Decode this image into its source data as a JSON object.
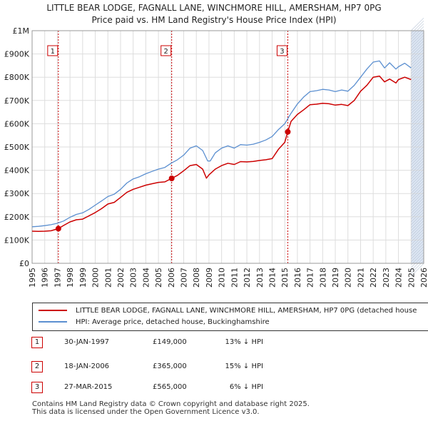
{
  "title_lines": [
    "LITTLE BEAR LODGE, FAGNALL LANE, WINCHMORE HILL, AMERSHAM, HP7 0PG",
    "Price paid vs. HM Land Registry's House Price Index (HPI)"
  ],
  "chart_data": {
    "type": "line",
    "x_range": [
      1995,
      2026
    ],
    "ylim": [
      0,
      1000000
    ],
    "y_ticks": [
      0,
      100000,
      200000,
      300000,
      400000,
      500000,
      600000,
      700000,
      800000,
      900000,
      1000000
    ],
    "y_tick_labels": [
      "£0",
      "£100K",
      "£200K",
      "£300K",
      "£400K",
      "£500K",
      "£600K",
      "£700K",
      "£800K",
      "£900K",
      "£1M"
    ],
    "x_ticks": [
      1995,
      1996,
      1997,
      1998,
      1999,
      2000,
      2001,
      2002,
      2003,
      2004,
      2005,
      2006,
      2007,
      2008,
      2009,
      2010,
      2011,
      2012,
      2013,
      2014,
      2015,
      2016,
      2017,
      2018,
      2019,
      2020,
      2021,
      2022,
      2023,
      2024,
      2025,
      2026
    ],
    "x_tick_labels": [
      "1995",
      "1996",
      "1997",
      "1998",
      "1999",
      "2000",
      "2001",
      "2002",
      "2003",
      "2004",
      "2005",
      "2006",
      "2007",
      "2008",
      "2009",
      "2010",
      "2011",
      "2012",
      "2013",
      "2014",
      "2015",
      "2016",
      "2017",
      "2018",
      "2019",
      "2020",
      "2021",
      "2022",
      "2023",
      "2024",
      "2025",
      "2026"
    ],
    "grid": true,
    "colors": {
      "property": "#cc0000",
      "hpi": "#5b8fd0",
      "band": "#dde6f3",
      "marker_line": "#cc0000"
    },
    "series": [
      {
        "name": "LITTLE BEAR LODGE, FAGNALL LANE, WINCHMORE HILL, AMERSHAM, HP7 0PG (detached house",
        "x": [
          1995.0,
          1995.5,
          1996.0,
          1996.5,
          1997.08,
          1997.5,
          1998.0,
          1998.5,
          1999.0,
          1999.5,
          2000.0,
          2000.5,
          2001.0,
          2001.5,
          2002.0,
          2002.5,
          2003.0,
          2003.5,
          2004.0,
          2004.5,
          2005.0,
          2005.5,
          2006.05,
          2006.5,
          2007.0,
          2007.5,
          2008.0,
          2008.5,
          2008.8,
          2009.0,
          2009.5,
          2010.0,
          2010.5,
          2011.0,
          2011.5,
          2012.0,
          2012.5,
          2013.0,
          2013.5,
          2014.0,
          2014.5,
          2015.0,
          2015.24,
          2015.5,
          2016.0,
          2016.5,
          2017.0,
          2017.5,
          2018.0,
          2018.5,
          2019.0,
          2019.5,
          2020.0,
          2020.5,
          2021.0,
          2021.5,
          2022.0,
          2022.5,
          2022.9,
          2023.3,
          2023.8,
          2024.0,
          2024.5,
          2025.0
        ],
        "y": [
          138000,
          137000,
          138000,
          140000,
          149000,
          163000,
          178000,
          187000,
          190000,
          204000,
          218000,
          235000,
          255000,
          262000,
          283000,
          305000,
          318000,
          327000,
          336000,
          342000,
          348000,
          350000,
          365000,
          378000,
          398000,
          420000,
          425000,
          405000,
          366000,
          380000,
          405000,
          420000,
          430000,
          425000,
          437000,
          436000,
          438000,
          442000,
          445000,
          450000,
          490000,
          520000,
          565000,
          610000,
          640000,
          660000,
          682000,
          684000,
          688000,
          686000,
          680000,
          683000,
          678000,
          700000,
          740000,
          765000,
          800000,
          805000,
          780000,
          792000,
          775000,
          790000,
          800000,
          790000
        ]
      },
      {
        "name": "HPI: Average price, detached house, Buckinghamshire",
        "x": [
          1995.0,
          1995.5,
          1996.0,
          1996.5,
          1997.0,
          1997.5,
          1998.0,
          1998.5,
          1999.0,
          1999.5,
          2000.0,
          2000.5,
          2001.0,
          2001.5,
          2002.0,
          2002.5,
          2003.0,
          2003.5,
          2004.0,
          2004.5,
          2005.0,
          2005.5,
          2006.0,
          2006.5,
          2007.0,
          2007.5,
          2008.0,
          2008.5,
          2008.9,
          2009.1,
          2009.5,
          2010.0,
          2010.5,
          2011.0,
          2011.5,
          2012.0,
          2012.5,
          2013.0,
          2013.5,
          2014.0,
          2014.5,
          2015.0,
          2015.5,
          2016.0,
          2016.5,
          2017.0,
          2017.5,
          2018.0,
          2018.5,
          2019.0,
          2019.5,
          2020.0,
          2020.5,
          2021.0,
          2021.5,
          2022.0,
          2022.5,
          2022.9,
          2023.3,
          2023.8,
          2024.0,
          2024.5,
          2025.0
        ],
        "y": [
          157000,
          159000,
          162000,
          166000,
          172000,
          182000,
          198000,
          210000,
          217000,
          232000,
          250000,
          268000,
          287000,
          297000,
          318000,
          345000,
          363000,
          372000,
          385000,
          395000,
          405000,
          412000,
          430000,
          445000,
          465000,
          495000,
          505000,
          485000,
          440000,
          440000,
          475000,
          495000,
          505000,
          495000,
          510000,
          508000,
          512000,
          520000,
          530000,
          545000,
          575000,
          600000,
          645000,
          685000,
          715000,
          738000,
          742000,
          748000,
          745000,
          738000,
          745000,
          740000,
          765000,
          800000,
          835000,
          865000,
          870000,
          840000,
          862000,
          835000,
          845000,
          860000,
          840000
        ]
      }
    ],
    "sales": [
      {
        "label": "1",
        "x": 1997.08,
        "y": 149000,
        "date": "30-JAN-1997",
        "price": "£149,000",
        "hpi_diff": "13% ↓ HPI"
      },
      {
        "label": "2",
        "x": 2006.05,
        "y": 365000,
        "date": "18-JAN-2006",
        "price": "£365,000",
        "hpi_diff": "15% ↓ HPI"
      },
      {
        "label": "3",
        "x": 2015.24,
        "y": 565000,
        "date": "27-MAR-2015",
        "price": "£565,000",
        "hpi_diff": "6% ↓ HPI"
      }
    ],
    "forecast_band_start": 2025.0
  },
  "legend": {
    "property_label": "LITTLE BEAR LODGE, FAGNALL LANE, WINCHMORE HILL, AMERSHAM, HP7 0PG (detached house",
    "hpi_label": "HPI: Average price, detached house, Buckinghamshire"
  },
  "footer_lines": [
    "Contains HM Land Registry data © Crown copyright and database right 2025.",
    "This data is licensed under the Open Government Licence v3.0."
  ]
}
